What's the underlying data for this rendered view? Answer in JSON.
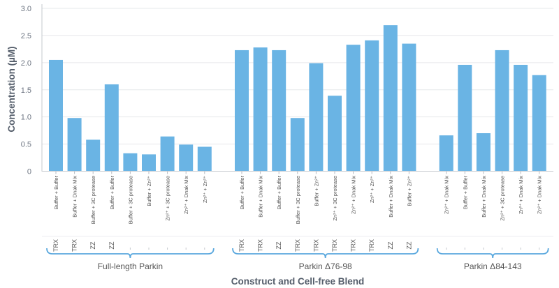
{
  "chart_data": {
    "type": "bar",
    "ylabel": "Concentration (µM)",
    "xlabel": "Construct and Cell-free Blend",
    "ylim": [
      0,
      3.0
    ],
    "yticks": [
      "0",
      "0.5",
      "1.0",
      "1.5",
      "2.0",
      "2.5",
      "3.0"
    ],
    "grid": true,
    "colors": {
      "bar": "#6ab4e4",
      "brace": "#5aa8de",
      "grid": "#e6e8eb"
    },
    "groups": [
      {
        "name": "Full-length Parkin",
        "categories": [
          "Buffer + Buffer",
          "Buffer + Dnak Mix",
          "Buffer + 3C protease",
          "Buffer + Buffer",
          "Buffer + 3C protease",
          "Buffer + Zn²⁺",
          "Zn²⁺ + 3C protease",
          "Zn²⁺ + Dnak Mix",
          "Zn²⁺ + Zn²⁺"
        ],
        "subcategories": [
          "TRX",
          "TRX",
          "ZZ",
          "ZZ",
          "",
          "",
          "",
          "",
          ""
        ],
        "values": [
          2.05,
          0.98,
          0.58,
          1.6,
          0.33,
          0.31,
          0.64,
          0.49,
          0.45
        ]
      },
      {
        "name": "Parkin Δ76-98",
        "categories": [
          "Buffer + Buffer",
          "Buffer + Dnak Mix",
          "Buffer + Buffer",
          "Buffer + 3C protease",
          "Buffer + Zn²⁺",
          "Zn²⁺ + 3C protease",
          "Zn²⁺ + Dnak Mix",
          "Zn²⁺ + Zn²⁺",
          "Buffer + Dnak Mix",
          "Buffer + Zn²⁺"
        ],
        "subcategories": [
          "TRX",
          "TRX",
          "ZZ",
          "TRX",
          "TRX",
          "TRX",
          "TRX",
          "TRX",
          "ZZ",
          "ZZ"
        ],
        "values": [
          2.23,
          2.28,
          2.23,
          0.98,
          1.99,
          1.39,
          2.33,
          2.41,
          2.69,
          2.35
        ]
      },
      {
        "name": "Parkin Δ84-143",
        "categories": [
          "Zn²⁺ + Dnak Mix",
          "Buffer + Buffer",
          "Buffer + Dnak Mix",
          "Zn²⁺ + 3C protease",
          "Zn²⁺ + Dnak Mix",
          "Zn²⁺ + Dnak Mix"
        ],
        "subcategories": [
          "",
          "",
          "",
          "",
          "",
          ""
        ],
        "values": [
          0.66,
          1.96,
          0.7,
          2.23,
          1.96,
          1.77
        ]
      }
    ]
  }
}
